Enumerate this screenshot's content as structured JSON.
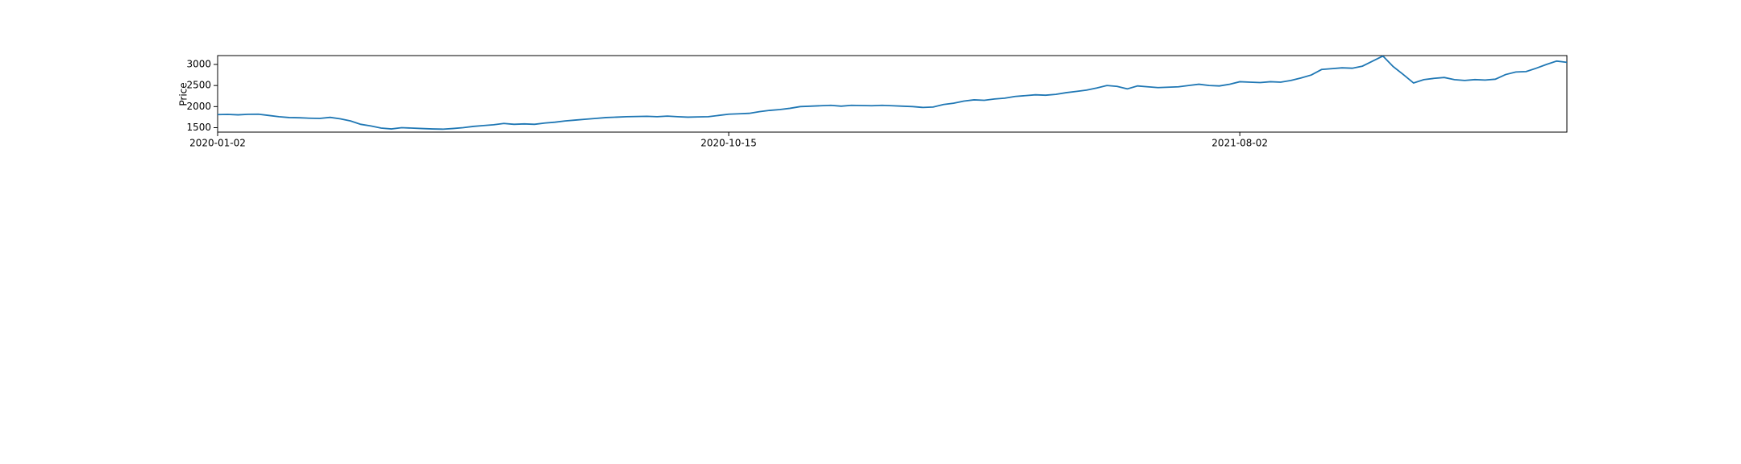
{
  "chart_data": {
    "type": "line",
    "ylabel": "Price",
    "color": "#1f77b4",
    "values": [
      1810,
      1815,
      1805,
      1818,
      1820,
      1790,
      1760,
      1740,
      1735,
      1725,
      1720,
      1745,
      1710,
      1660,
      1580,
      1540,
      1490,
      1470,
      1500,
      1490,
      1480,
      1470,
      1465,
      1480,
      1500,
      1530,
      1550,
      1570,
      1600,
      1580,
      1590,
      1580,
      1610,
      1630,
      1660,
      1680,
      1700,
      1720,
      1740,
      1750,
      1760,
      1765,
      1770,
      1760,
      1775,
      1760,
      1750,
      1755,
      1760,
      1790,
      1820,
      1830,
      1840,
      1880,
      1910,
      1930,
      1960,
      2000,
      2010,
      2020,
      2030,
      2010,
      2030,
      2025,
      2020,
      2030,
      2020,
      2010,
      2000,
      1980,
      1990,
      2050,
      2080,
      2130,
      2160,
      2150,
      2180,
      2200,
      2240,
      2260,
      2280,
      2270,
      2290,
      2330,
      2360,
      2390,
      2440,
      2500,
      2480,
      2420,
      2490,
      2470,
      2450,
      2460,
      2470,
      2500,
      2530,
      2500,
      2490,
      2530,
      2590,
      2580,
      2570,
      2590,
      2580,
      2620,
      2680,
      2750,
      2880,
      2900,
      2920,
      2910,
      2960,
      3080,
      3200,
      2950,
      2760,
      2560,
      2640,
      2670,
      2690,
      2640,
      2620,
      2640,
      2630,
      2650,
      2760,
      2820,
      2830,
      2910,
      3000,
      3080,
      3050
    ],
    "xlim": [
      0,
      132
    ],
    "xticks": [
      {
        "value": 0,
        "label": "2020-01-02"
      },
      {
        "value": 50,
        "label": "2020-10-15"
      },
      {
        "value": 100,
        "label": "2021-08-02"
      }
    ],
    "ylim": [
      1395,
      3210
    ],
    "yticks": [
      1500,
      2000,
      2500,
      3000
    ],
    "grid": false
  }
}
